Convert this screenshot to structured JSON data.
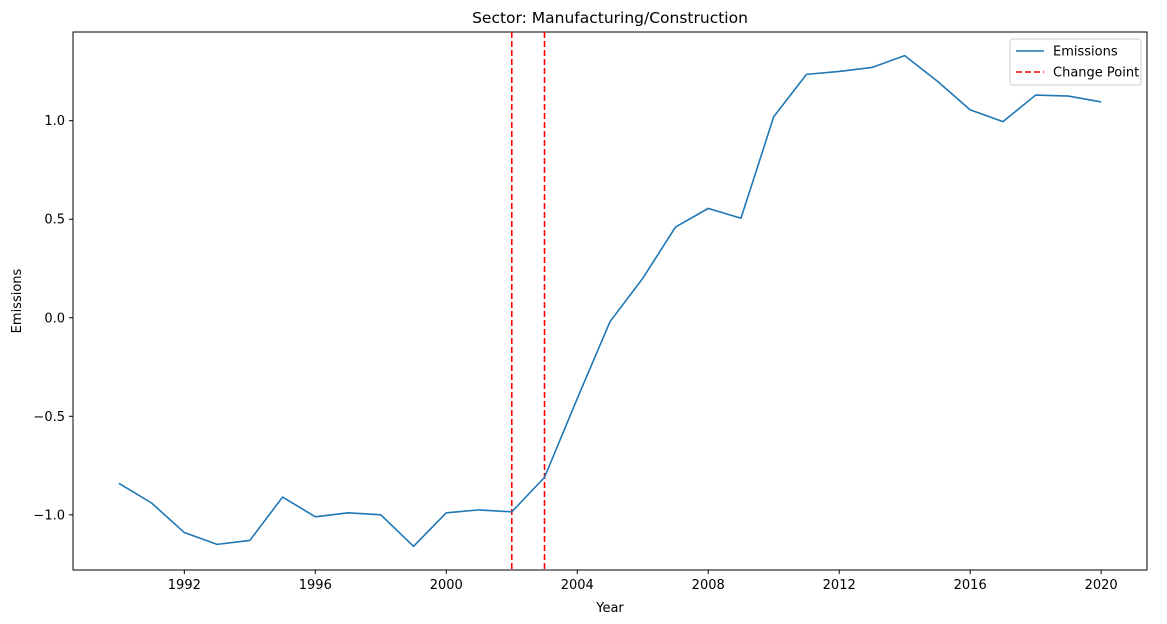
{
  "chart_data": {
    "type": "line",
    "title": "Sector: Manufacturing/Construction",
    "xlabel": "Year",
    "ylabel": "Emissions",
    "xlim": [
      1988.6,
      2021.4
    ],
    "ylim": [
      -1.28,
      1.45
    ],
    "xticks": [
      1992,
      1996,
      2000,
      2004,
      2008,
      2012,
      2016,
      2020
    ],
    "yticks": [
      -1.0,
      -0.5,
      0.0,
      0.5,
      1.0
    ],
    "ytick_labels": [
      "−1.0",
      "−0.5",
      "0.0",
      "0.5",
      "1.0"
    ],
    "grid": false,
    "legend_position": "top-right",
    "series": [
      {
        "name": "Emissions",
        "color": "#1f77b4",
        "x": [
          1990,
          1991,
          1992,
          1993,
          1994,
          1995,
          1996,
          1997,
          1998,
          1999,
          2000,
          2001,
          2002,
          2003,
          2004,
          2005,
          2006,
          2007,
          2008,
          2009,
          2010,
          2011,
          2012,
          2013,
          2014,
          2015,
          2016,
          2017,
          2018,
          2019,
          2020
        ],
        "y": [
          -0.84,
          -0.94,
          -1.09,
          -1.15,
          -1.13,
          -0.91,
          -1.01,
          -0.99,
          -1.0,
          -1.16,
          -0.99,
          -0.975,
          -0.985,
          -0.81,
          -0.41,
          -0.02,
          0.2,
          0.46,
          0.555,
          0.505,
          1.02,
          1.235,
          1.25,
          1.27,
          1.33,
          1.2,
          1.055,
          0.995,
          1.13,
          1.125,
          1.095
        ]
      }
    ],
    "change_points": {
      "name": "Change Point",
      "color": "#ff0000",
      "x": [
        2002,
        2003
      ]
    }
  }
}
